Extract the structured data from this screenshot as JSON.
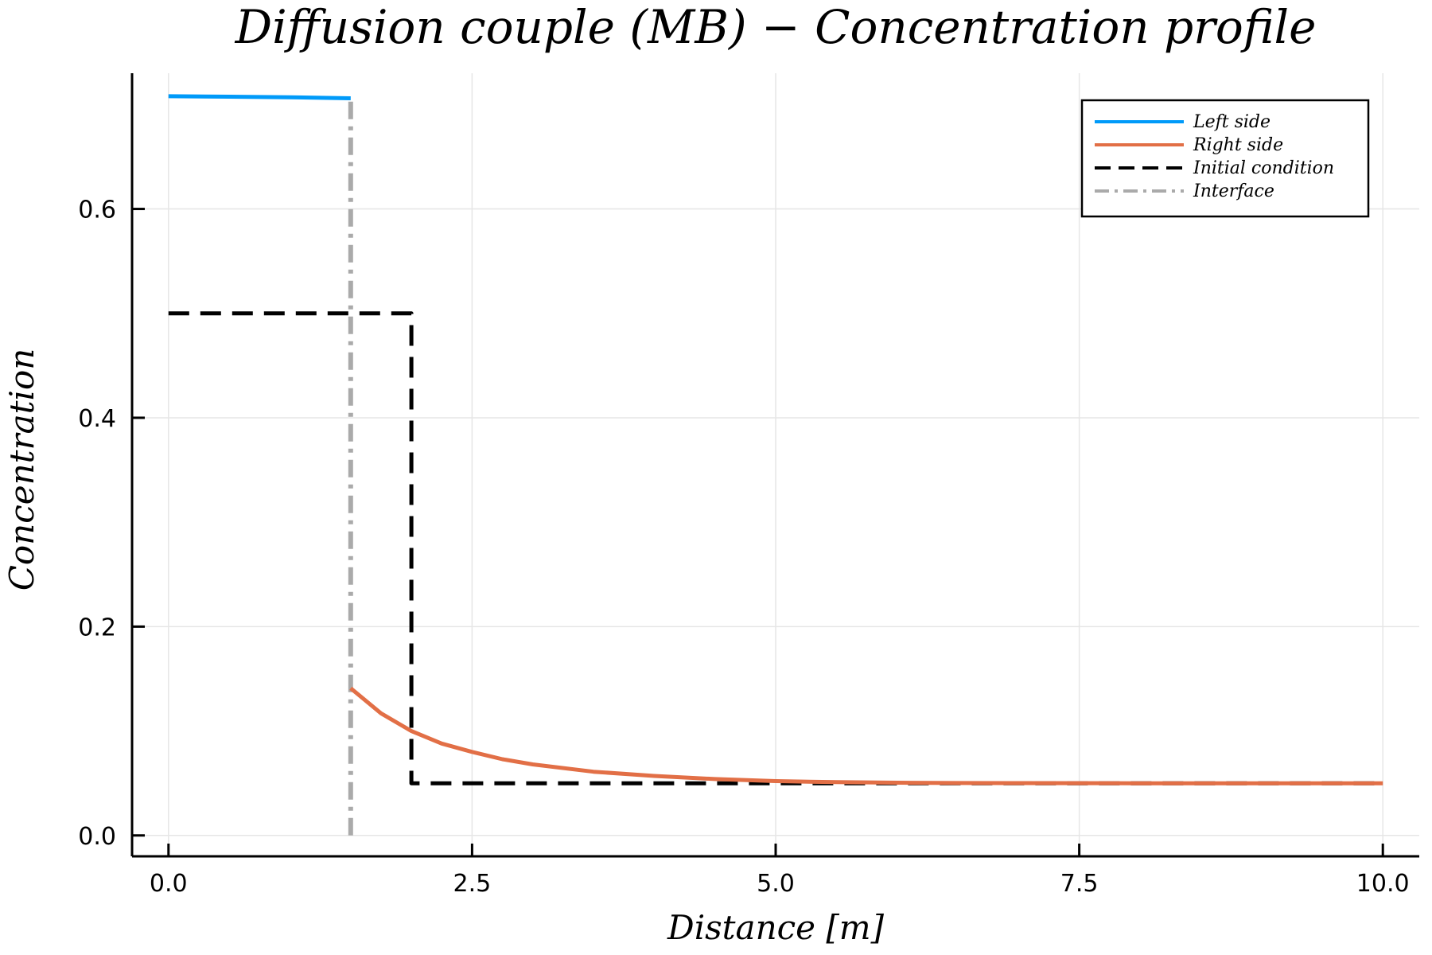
{
  "chart_data": {
    "type": "line",
    "title": "Diffusion couple (MB) − Concentration profile",
    "xlabel": "Distance [m]",
    "ylabel": "Concentration",
    "xlim": [
      -0.3,
      10.3
    ],
    "ylim": [
      -0.02,
      0.73
    ],
    "x_ticks": [
      0.0,
      2.5,
      5.0,
      7.5,
      10.0
    ],
    "x_tick_labels": [
      "0.0",
      "2.5",
      "5.0",
      "7.5",
      "10.0"
    ],
    "y_ticks": [
      0.0,
      0.2,
      0.4,
      0.6
    ],
    "y_tick_labels": [
      "0.0",
      "0.2",
      "0.4",
      "0.6"
    ],
    "grid": true,
    "legend_position": "top-right",
    "series": [
      {
        "name": "Left side",
        "color": "#009af9",
        "style": "solid",
        "x": [
          0.0,
          0.5,
          1.0,
          1.5
        ],
        "y": [
          0.708,
          0.7075,
          0.707,
          0.706
        ]
      },
      {
        "name": "Right side",
        "color": "#e26f46",
        "style": "solid",
        "x": [
          1.5,
          1.75,
          2.0,
          2.25,
          2.5,
          2.75,
          3.0,
          3.5,
          4.0,
          4.5,
          5.0,
          5.5,
          6.0,
          6.5,
          7.0,
          8.0,
          9.0,
          10.0
        ],
        "y": [
          0.141,
          0.117,
          0.1,
          0.088,
          0.08,
          0.073,
          0.068,
          0.061,
          0.057,
          0.054,
          0.052,
          0.051,
          0.0505,
          0.0502,
          0.0501,
          0.05,
          0.05,
          0.05
        ]
      },
      {
        "name": "Initial condition",
        "color": "#000000",
        "style": "dashed",
        "x": [
          0.0,
          2.0,
          2.0,
          10.0
        ],
        "y": [
          0.5,
          0.5,
          0.05,
          0.05
        ]
      },
      {
        "name": "Interface",
        "color": "#aaaaaa",
        "style": "dashdot",
        "x": [
          1.5,
          1.5
        ],
        "y": [
          0.0,
          0.706
        ]
      }
    ]
  }
}
